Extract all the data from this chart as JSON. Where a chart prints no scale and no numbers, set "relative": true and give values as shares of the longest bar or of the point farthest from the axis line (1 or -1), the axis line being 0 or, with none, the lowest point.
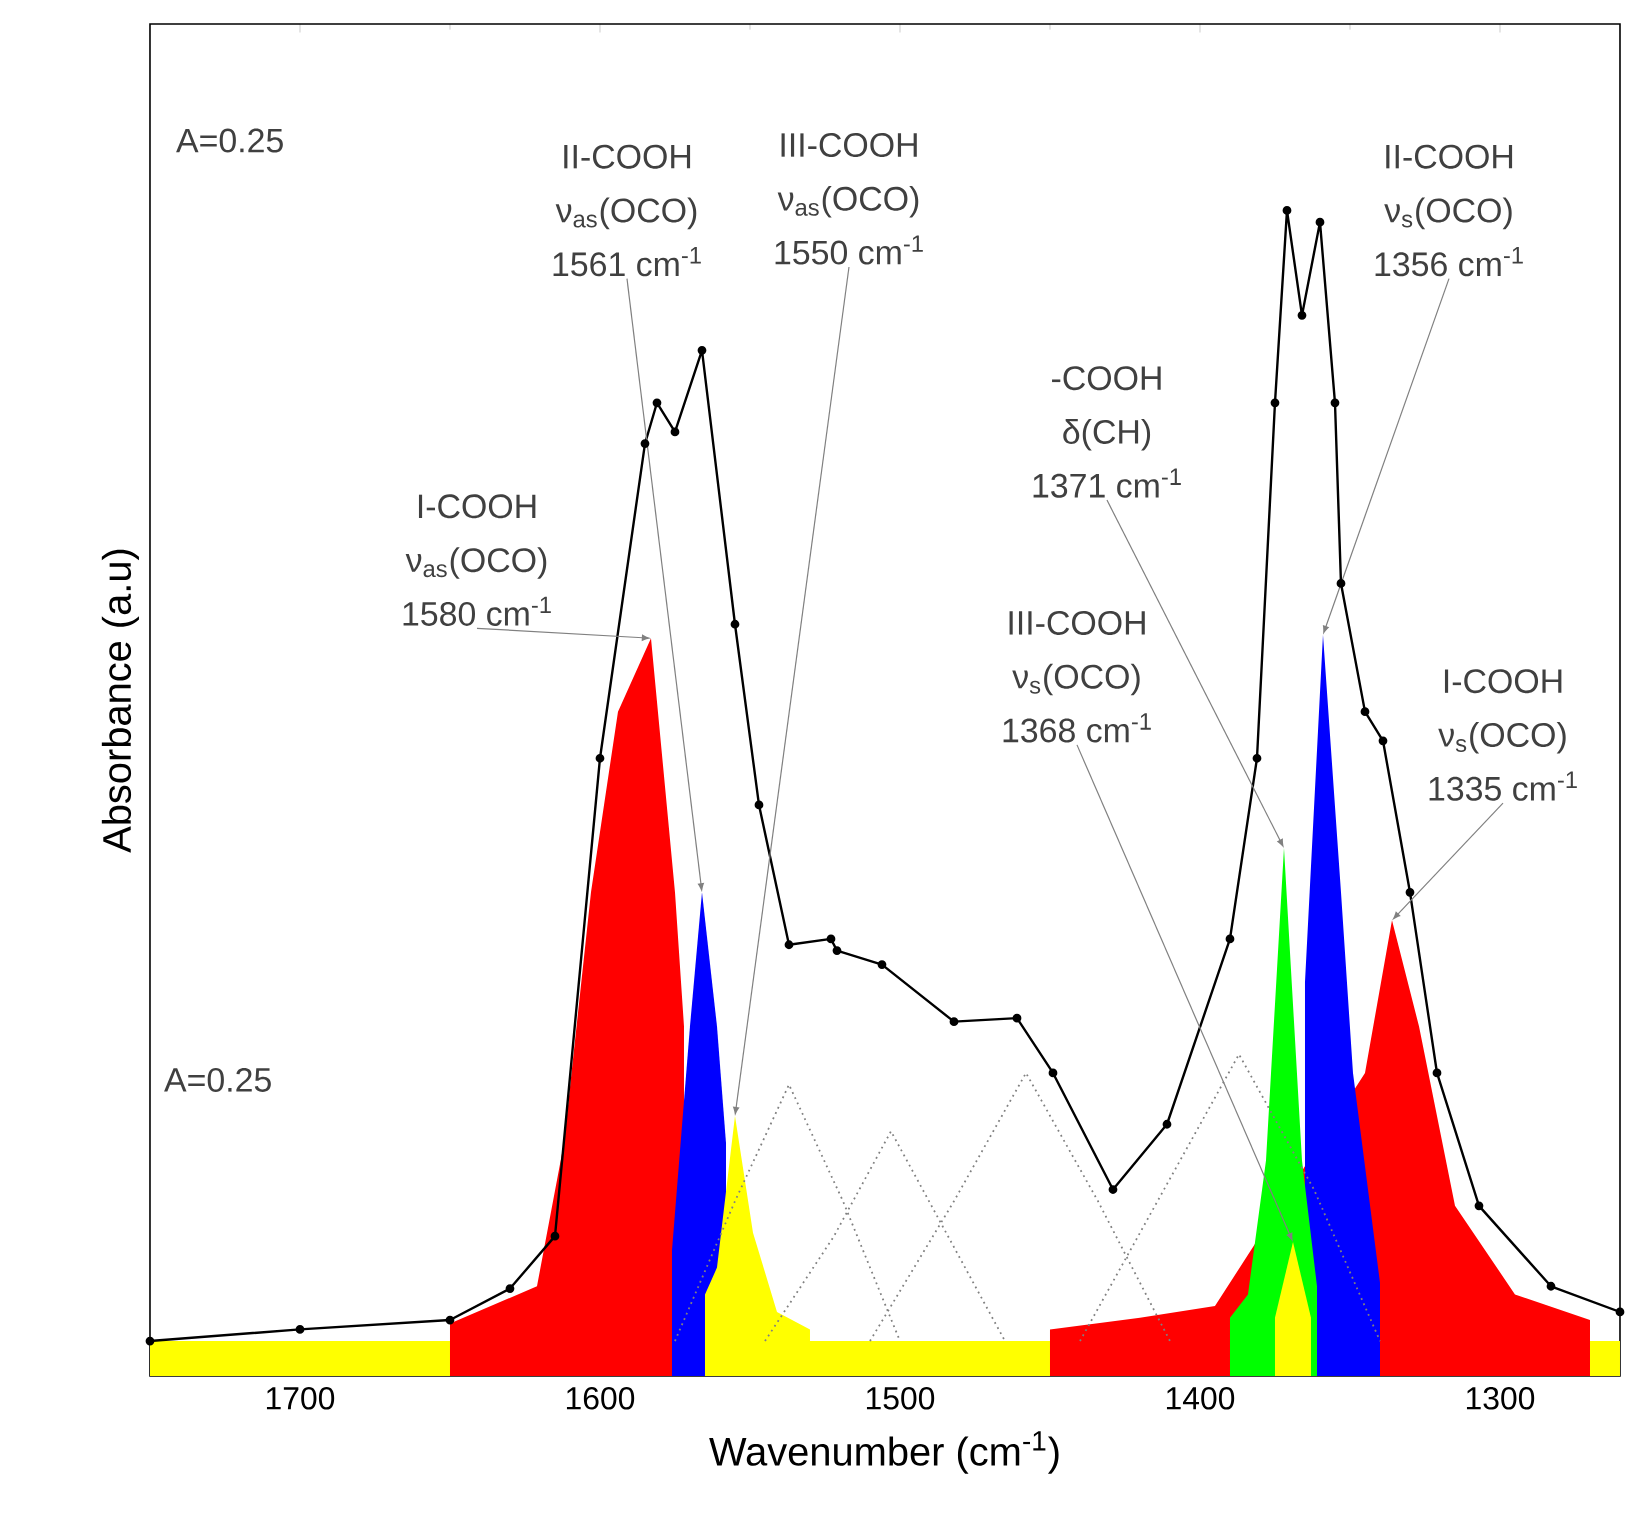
{
  "chart_data": {
    "type": "line",
    "relative": true,
    "xlabel": "Wavenumber (cm$^{-1}$)",
    "ylabel": "Absorbance (a.u)",
    "xlim": [
      1750,
      1260
    ],
    "xticks": [
      1700,
      1600,
      1500,
      1400,
      1300
    ],
    "series": [
      {
        "type": "area",
        "color": "#ffff00",
        "x": [
          1750,
          1260
        ],
        "values": [
          0.03,
          0.03
        ]
      },
      {
        "type": "area",
        "color": "#ff0000",
        "x": [
          1650,
          1621,
          1612,
          1603,
          1594,
          1583,
          1575,
          1572
        ],
        "values": [
          0.045,
          0.077,
          0.2,
          0.415,
          0.57,
          0.633,
          0.415,
          0.3
        ]
      },
      {
        "type": "area",
        "color": "#0000ff",
        "x": [
          1576,
          1570,
          1566,
          1561,
          1558
        ],
        "values": [
          0.108,
          0.3,
          0.415,
          0.3,
          0.2
        ]
      },
      {
        "type": "area",
        "color": "#ffff00",
        "x": [
          1565,
          1561,
          1555,
          1549,
          1541,
          1530
        ],
        "values": [
          0.07,
          0.093,
          0.223,
          0.123,
          0.055,
          0.04
        ]
      },
      {
        "type": "area",
        "color": "#ff0000",
        "x": [
          1450,
          1420,
          1395,
          1345,
          1336,
          1327,
          1315,
          1295,
          1270
        ],
        "values": [
          0.04,
          0.05,
          0.06,
          0.26,
          0.391,
          0.3,
          0.146,
          0.07,
          0.048
        ]
      },
      {
        "type": "area",
        "color": "#0000ff",
        "x": [
          1365,
          1359,
          1353,
          1349,
          1340
        ],
        "values": [
          0.338,
          0.636,
          0.415,
          0.26,
          0.08
        ]
      },
      {
        "type": "area",
        "color": "#00ff00",
        "x": [
          1390,
          1384,
          1378,
          1372,
          1366,
          1361
        ],
        "values": [
          0.05,
          0.07,
          0.185,
          0.453,
          0.185,
          0.077
        ]
      },
      {
        "type": "area",
        "color": "#ffff00",
        "x": [
          1375,
          1369,
          1363
        ],
        "values": [
          0.05,
          0.115,
          0.05
        ]
      },
      {
        "line_style": "dotted",
        "color": "#808080",
        "x": [
          1575,
          1555,
          1537,
          1519,
          1500
        ],
        "values": [
          0.03,
          0.15,
          0.25,
          0.15,
          0.03
        ]
      },
      {
        "line_style": "dotted",
        "color": "#808080",
        "x": [
          1545,
          1522,
          1503,
          1484,
          1465
        ],
        "values": [
          0.03,
          0.12,
          0.21,
          0.12,
          0.03
        ]
      },
      {
        "line_style": "dotted",
        "color": "#808080",
        "x": [
          1510,
          1482,
          1458,
          1434,
          1410
        ],
        "values": [
          0.03,
          0.15,
          0.26,
          0.15,
          0.03
        ]
      },
      {
        "line_style": "dotted",
        "color": "#808080",
        "x": [
          1440,
          1412,
          1387,
          1362,
          1340
        ],
        "values": [
          0.03,
          0.16,
          0.276,
          0.16,
          0.03
        ]
      },
      {
        "marker": "circle",
        "color": "#000000",
        "x": [
          1750,
          1700,
          1650,
          1630,
          1615,
          1600,
          1585,
          1581,
          1575,
          1566,
          1555,
          1547,
          1537,
          1523,
          1521,
          1506,
          1482,
          1461,
          1449,
          1429,
          1411,
          1390,
          1381,
          1375,
          1371,
          1366,
          1360,
          1355,
          1353,
          1345,
          1339,
          1330,
          1321,
          1307,
          1283,
          1260
        ],
        "values": [
          0.03,
          0.04,
          0.048,
          0.075,
          0.12,
          0.53,
          0.8,
          0.835,
          0.81,
          0.88,
          0.645,
          0.49,
          0.37,
          0.375,
          0.365,
          0.353,
          0.304,
          0.307,
          0.26,
          0.16,
          0.216,
          0.375,
          0.53,
          0.835,
          1,
          0.91,
          0.99,
          0.835,
          0.68,
          0.57,
          0.545,
          0.415,
          0.26,
          0.146,
          0.077,
          0.055
        ]
      }
    ],
    "annotations": [
      "I-COOH",
      "ν$_{as}$(OCO)",
      {
        "text": "1580 cm$^{-1}$",
        "x": 1583,
        "y": 0.633
      },
      "II-COOH",
      "ν$_{as}$(OCO)",
      {
        "text": "1561 cm$^{-1}$",
        "x": 1566,
        "y": 0.415
      },
      "III-COOH",
      "ν$_{as}$(OCO)",
      {
        "text": "1550 cm$^{-1}$",
        "x": 1555,
        "y": 0.223
      },
      "-COOH",
      "δ(CH)",
      {
        "text": "1371 cm$^{-1}$",
        "x": 1372,
        "y": 0.453
      },
      "III-COOH",
      "ν$_{s}$(OCO)",
      {
        "text": "1368 cm$^{-1}$",
        "x": 1369,
        "y": 0.115
      },
      "II-COOH",
      "ν$_{s}$(OCO)",
      {
        "text": "1356 cm$^{-1}$",
        "x": 1359,
        "y": 0.636
      },
      "I-COOH",
      "ν$_{s}$(OCO)",
      {
        "text": "1335 cm$^{-1}$",
        "x": 1336,
        "y": 0.391
      },
      "A=0.25",
      "A=0.25"
    ]
  }
}
